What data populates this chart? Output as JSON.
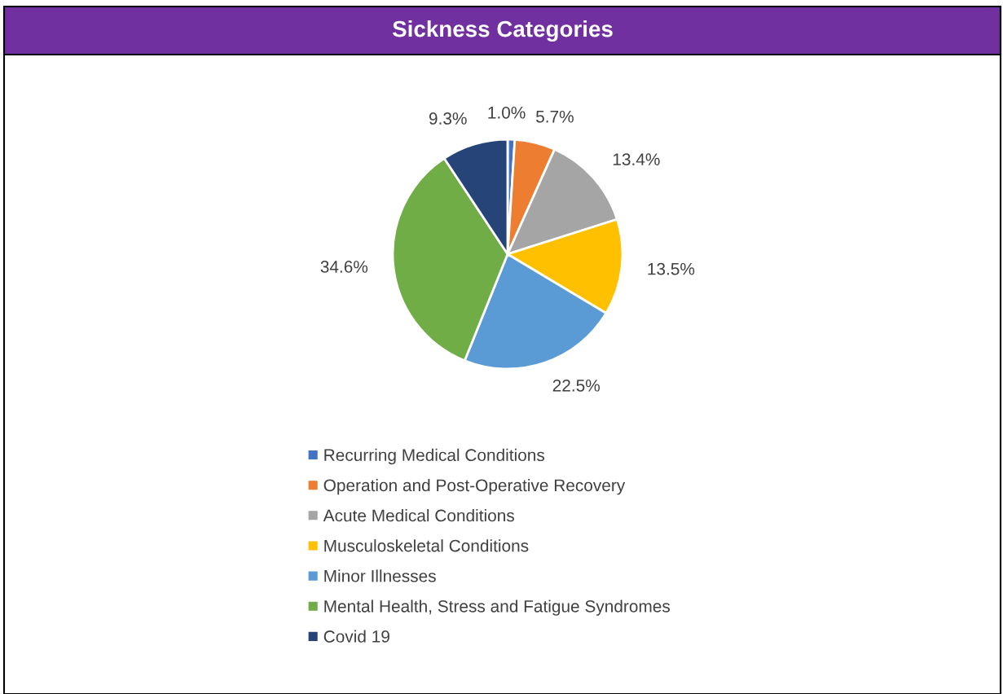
{
  "chart_data": {
    "type": "pie",
    "title": "Sickness Categories",
    "categories": [
      "Recurring Medical Conditions",
      "Operation and Post-Operative Recovery",
      "Acute Medical Conditions",
      "Musculoskeletal Conditions",
      "Minor Illnesses",
      "Mental Health, Stress and Fatigue Syndromes",
      "Covid 19"
    ],
    "values": [
      1.0,
      5.7,
      13.4,
      13.5,
      22.5,
      34.6,
      9.3
    ],
    "colors": [
      "#4472c4",
      "#ed7d31",
      "#a5a5a5",
      "#ffc000",
      "#5b9bd5",
      "#70ad47",
      "#264478"
    ],
    "value_labels": [
      "1.0%",
      "5.7%",
      "13.4%",
      "13.5%",
      "22.5%",
      "34.6%",
      "9.3%"
    ],
    "legend": "bottom"
  }
}
